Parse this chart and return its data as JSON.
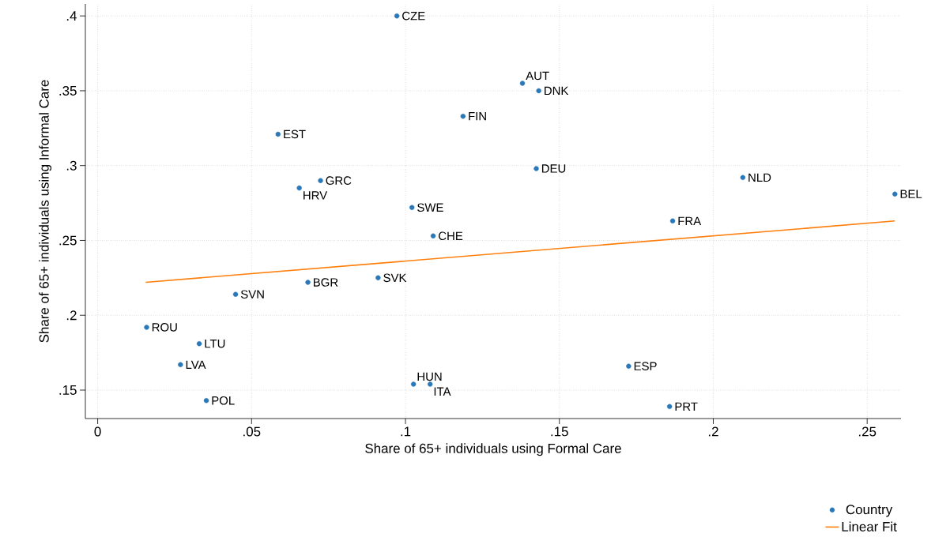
{
  "chart_data": {
    "type": "scatter",
    "xlabel": "Share of 65+ individuals using Formal Care",
    "ylabel": "Share of 65+ individuals using Informal Care",
    "xlim": [
      -0.004,
      0.261
    ],
    "ylim": [
      0.131,
      0.408
    ],
    "xticks": [
      0,
      {
        "value": 0.05,
        "label": ".05"
      },
      {
        "value": 0.1,
        "label": ".1"
      },
      {
        "value": 0.15,
        "label": ".15"
      },
      {
        "value": 0.2,
        "label": ".2"
      },
      {
        "value": 0.25,
        "label": ".25"
      }
    ],
    "yticks": [
      {
        "value": 0.15,
        "label": ".15"
      },
      {
        "value": 0.2,
        "label": ".2"
      },
      {
        "value": 0.25,
        "label": ".25"
      },
      {
        "value": 0.3,
        "label": ".3"
      },
      {
        "value": 0.35,
        "label": ".35"
      },
      {
        "value": 0.4,
        "label": ".4"
      }
    ],
    "grid": true,
    "legend": "bottom right",
    "series": [
      {
        "name": "Country",
        "marker": "circle",
        "color": "#2a78b8",
        "x": [
          0.0972,
          0.138,
          0.1433,
          0.1187,
          0.0586,
          0.1425,
          0.0724,
          0.0655,
          0.2096,
          0.259,
          0.1021,
          0.1868,
          0.109,
          0.0911,
          0.0683,
          0.0448,
          0.0159,
          0.033,
          0.0269,
          0.1725,
          0.1026,
          0.108,
          0.0353,
          0.1858
        ],
        "values": [
          0.4,
          0.355,
          0.35,
          0.333,
          0.321,
          0.298,
          0.29,
          0.285,
          0.292,
          0.281,
          0.272,
          0.263,
          0.253,
          0.225,
          0.222,
          0.214,
          0.192,
          0.181,
          0.167,
          0.166,
          0.154,
          0.154,
          0.143,
          0.139
        ]
      },
      {
        "name": "Linear Fit",
        "type": "line",
        "color": "#ff7f0e",
        "marker": "none",
        "x": [
          0.0156,
          0.259
        ],
        "values": [
          0.222,
          0.263
        ]
      }
    ],
    "annotations": [
      {
        "text": "CZE",
        "x": 0.0972,
        "y": 0.4
      },
      {
        "text": "AUT",
        "x": 0.138,
        "y": 0.355
      },
      {
        "text": "DNK",
        "x": 0.1433,
        "y": 0.35
      },
      {
        "text": "FIN",
        "x": 0.1187,
        "y": 0.333
      },
      {
        "text": "EST",
        "x": 0.0586,
        "y": 0.321
      },
      {
        "text": "DEU",
        "x": 0.1425,
        "y": 0.298
      },
      {
        "text": "GRC",
        "x": 0.0724,
        "y": 0.29
      },
      {
        "text": "HRV",
        "x": 0.0655,
        "y": 0.285
      },
      {
        "text": "NLD",
        "x": 0.2096,
        "y": 0.292
      },
      {
        "text": "BEL",
        "x": 0.259,
        "y": 0.281
      },
      {
        "text": "SWE",
        "x": 0.1021,
        "y": 0.272
      },
      {
        "text": "FRA",
        "x": 0.1868,
        "y": 0.263
      },
      {
        "text": "CHE",
        "x": 0.109,
        "y": 0.253
      },
      {
        "text": "SVK",
        "x": 0.0911,
        "y": 0.225
      },
      {
        "text": "BGR",
        "x": 0.0683,
        "y": 0.222
      },
      {
        "text": "SVN",
        "x": 0.0448,
        "y": 0.214
      },
      {
        "text": "ROU",
        "x": 0.0159,
        "y": 0.192
      },
      {
        "text": "LTU",
        "x": 0.033,
        "y": 0.181
      },
      {
        "text": "LVA",
        "x": 0.0269,
        "y": 0.167
      },
      {
        "text": "ESP",
        "x": 0.1725,
        "y": 0.166
      },
      {
        "text": "HUN",
        "x": 0.1026,
        "y": 0.154
      },
      {
        "text": "ITA",
        "x": 0.108,
        "y": 0.154
      },
      {
        "text": "POL",
        "x": 0.0353,
        "y": 0.143
      },
      {
        "text": "PRT",
        "x": 0.1858,
        "y": 0.139
      }
    ]
  }
}
